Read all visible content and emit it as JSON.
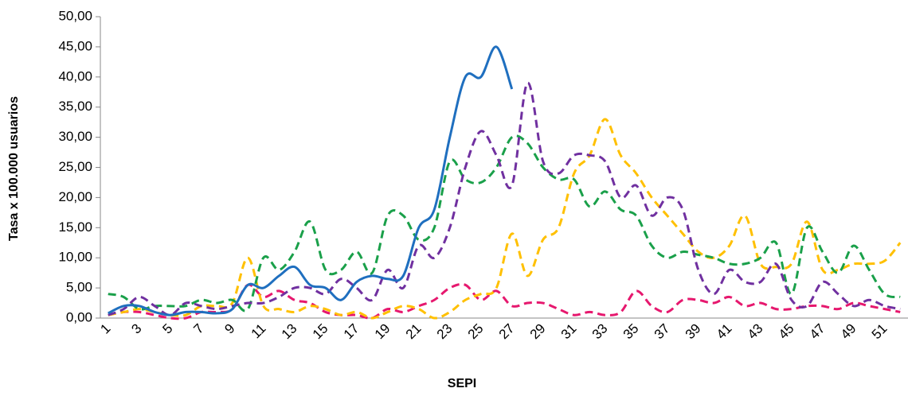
{
  "chart_data": {
    "type": "line",
    "x_label": "SEPI",
    "y_label": "Tasa x 100.000 usuarios",
    "categories": [
      "1",
      null,
      "3",
      null,
      "5",
      null,
      "7",
      null,
      "9",
      null,
      "11",
      null,
      "13",
      null,
      "15",
      null,
      "17",
      null,
      "19",
      null,
      "21",
      null,
      "23",
      null,
      "25",
      null,
      "27",
      null,
      "29",
      null,
      "31",
      null,
      "33",
      null,
      "35",
      null,
      "37",
      null,
      "39",
      null,
      "41",
      null,
      "43",
      null,
      "45",
      null,
      "47",
      null,
      "49",
      null,
      "51",
      null
    ],
    "ylim": [
      0,
      50
    ],
    "yticks": [
      {
        "value": 0,
        "label": "0,00"
      },
      {
        "value": 5,
        "label": "5,00"
      },
      {
        "value": 10,
        "label": "10,00"
      },
      {
        "value": 15,
        "label": "15,00"
      },
      {
        "value": 20,
        "label": "20,00"
      },
      {
        "value": 25,
        "label": "25,00"
      },
      {
        "value": 30,
        "label": "30,00"
      },
      {
        "value": 35,
        "label": "35,00"
      },
      {
        "value": 40,
        "label": "40,00"
      },
      {
        "value": 45,
        "label": "45,00"
      },
      {
        "value": 50,
        "label": "50,00"
      }
    ],
    "series": [
      {
        "color": "#e6186e",
        "dashed": true,
        "values": [
          0.5,
          1,
          1,
          0.5,
          0,
          0,
          1,
          1,
          1.5,
          5.5,
          3.5,
          4.5,
          3,
          2.5,
          1,
          0.5,
          0.5,
          0,
          1.5,
          1,
          2,
          3,
          5,
          5.5,
          3,
          4.5,
          2,
          2.5,
          2.5,
          1.5,
          0.5,
          1,
          0.5,
          1,
          4.5,
          2,
          1,
          3,
          3,
          2.5,
          3.5,
          2,
          2.5,
          1.5,
          1.5,
          2,
          2,
          1.5,
          2.5,
          2,
          1.5,
          1
        ]
      },
      {
        "color": "#ffc000",
        "dashed": true,
        "values": [
          0.5,
          1,
          1.5,
          1,
          0.5,
          0.5,
          2,
          2,
          2.5,
          10,
          2,
          1.5,
          1,
          2,
          1.5,
          0.5,
          1,
          0,
          1,
          2,
          1.5,
          0,
          1,
          3,
          4,
          5,
          14,
          7,
          13,
          15,
          24,
          27,
          33,
          27,
          24,
          20,
          17,
          14,
          11,
          10,
          12,
          17,
          9,
          8.5,
          9,
          16,
          8,
          8,
          9,
          9,
          9.5,
          12.5
        ]
      },
      {
        "color": "#1aa04a",
        "dashed": true,
        "values": [
          4,
          3.5,
          1.5,
          2,
          2,
          2,
          3,
          2.5,
          3,
          1.5,
          10,
          8,
          11,
          16,
          8,
          8,
          11,
          7.5,
          17,
          17,
          13,
          15,
          26,
          23,
          22.5,
          25,
          30,
          29,
          25,
          23,
          23,
          18.5,
          21,
          18,
          17,
          12,
          10,
          11,
          10.5,
          10,
          9,
          9,
          10,
          12.5,
          4,
          15,
          11,
          7.5,
          12,
          8,
          4,
          3.5
        ]
      },
      {
        "color": "#7030a0",
        "dashed": true,
        "values": [
          0.5,
          1.5,
          3.5,
          2,
          0.5,
          2.5,
          2,
          1.5,
          2,
          2.5,
          2.5,
          3.5,
          5,
          5,
          4,
          6.5,
          5,
          3,
          8,
          5,
          12,
          10,
          15,
          25,
          31,
          27,
          22,
          39,
          26,
          24,
          27,
          27,
          26,
          20,
          22,
          17,
          20,
          18,
          8,
          4,
          8,
          6,
          6,
          9,
          3,
          2,
          6,
          4,
          2,
          3,
          2,
          1.5
        ]
      },
      {
        "color": "#1f6fbf",
        "dashed": false,
        "values": [
          0.8,
          2,
          2,
          1,
          0.5,
          1,
          1,
          0.8,
          1.5,
          5.5,
          5,
          7,
          8.5,
          5.5,
          5,
          3,
          6,
          7,
          6.5,
          7,
          15,
          18,
          30,
          40,
          40,
          45,
          38,
          null,
          null,
          null,
          null,
          null,
          null,
          null,
          null,
          null,
          null,
          null,
          null,
          null,
          null,
          null,
          null,
          null,
          null,
          null,
          null,
          null,
          null,
          null,
          null,
          null
        ]
      }
    ]
  }
}
